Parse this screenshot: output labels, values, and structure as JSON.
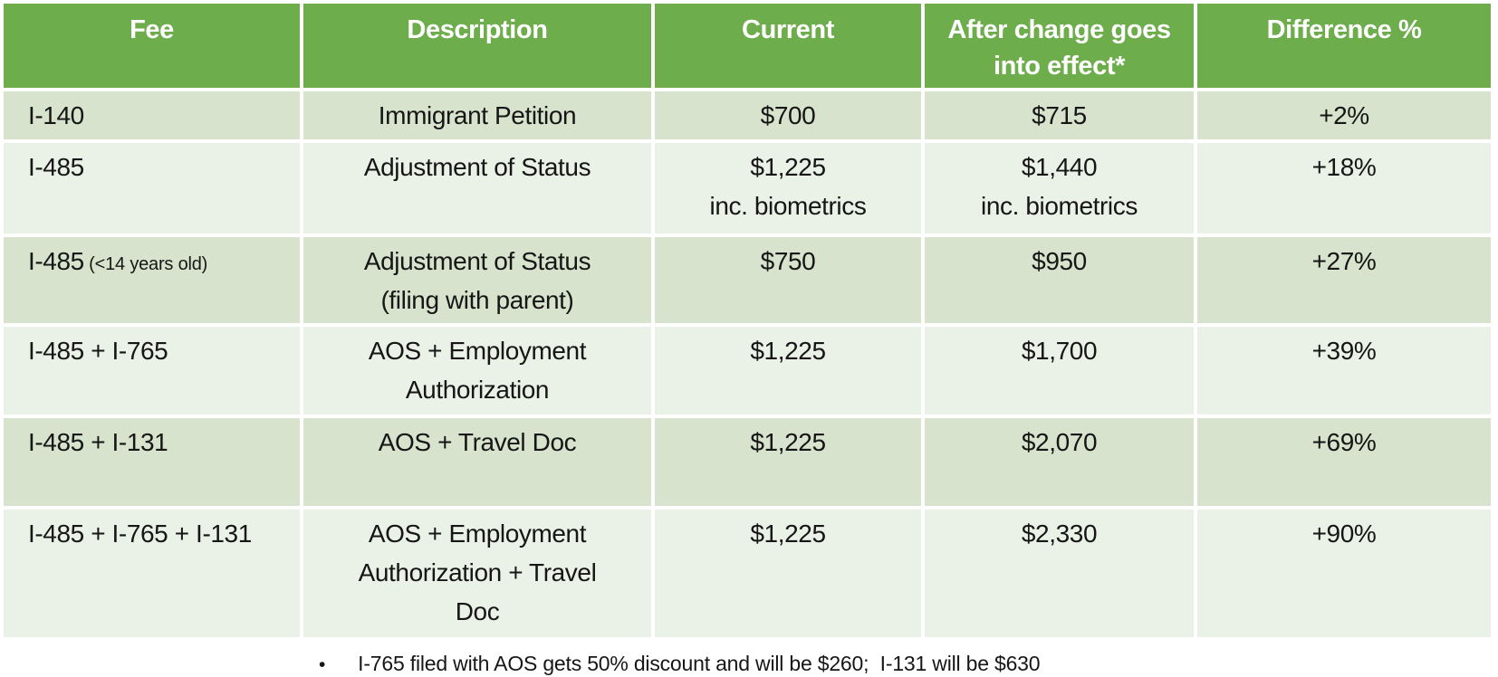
{
  "colors": {
    "header_bg": "#6ead4b",
    "row_band_dark": "#d7e3cc",
    "row_band_light": "#eaf1e6",
    "header_text": "#ffffff",
    "body_text": "#161616",
    "background": "#ffffff"
  },
  "table": {
    "headers": [
      "Fee",
      "Description",
      "Current",
      "After change goes into effect*",
      "Difference %"
    ],
    "rows": [
      {
        "fee": "I-140",
        "fee_note": "",
        "description": "Immigrant Petition",
        "current": "$700",
        "after": "$715",
        "difference": "+2%"
      },
      {
        "fee": "I-485",
        "fee_note": "",
        "description": "Adjustment of Status",
        "current": "$1,225\ninc. biometrics",
        "after": "$1,440\ninc. biometrics",
        "difference": "+18%"
      },
      {
        "fee": "I-485",
        "fee_note": "(<14 years old)",
        "description": "Adjustment of Status\n(filing with parent)",
        "current": "$750",
        "after": "$950",
        "difference": "+27%"
      },
      {
        "fee": "I-485 + I-765",
        "fee_note": "",
        "description": "AOS + Employment\nAuthorization",
        "current": "$1,225",
        "after": "$1,700",
        "difference": "+39%"
      },
      {
        "fee": "I-485 + I-131",
        "fee_note": "",
        "description": "AOS + Travel Doc",
        "current": "$1,225",
        "after": "$2,070",
        "difference": "+69%"
      },
      {
        "fee": "I-485 + I-765 + I-131",
        "fee_note": "",
        "description": "AOS + Employment\nAuthorization + Travel\nDoc",
        "current": "$1,225",
        "after": "$2,330",
        "difference": "+90%"
      }
    ]
  },
  "footnote": {
    "bullet": "•",
    "text": "I-765 filed with AOS gets 50% discount and will be $260;  I-131 will be $630"
  }
}
